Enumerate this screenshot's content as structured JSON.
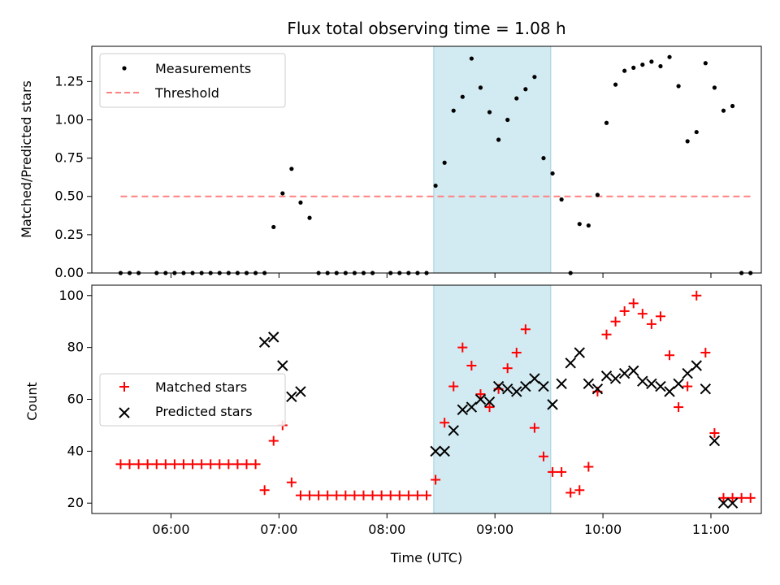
{
  "chart_data": [
    {
      "type": "scatter",
      "title": "Flux total observing time = 1.08 h",
      "ylabel": "Matched/Predicted stars",
      "xlabel": "",
      "xlim": [
        "05:16",
        "11:28"
      ],
      "ylim": [
        0,
        1.48
      ],
      "yticks": [
        0.0,
        0.25,
        0.5,
        0.75,
        1.0,
        1.25
      ],
      "ytick_labels": [
        "0.00",
        "0.25",
        "0.50",
        "0.75",
        "1.00",
        "1.25"
      ],
      "legend_position": "top-left",
      "shaded_region": [
        "08:26",
        "09:31"
      ],
      "shaded_color": "#add8e6",
      "series": [
        {
          "name": "Measurements",
          "marker": "dot",
          "color": "#000000",
          "x": [
            "05:32",
            "05:37",
            "05:42",
            "05:52",
            "05:57",
            "06:02",
            "06:07",
            "06:12",
            "06:17",
            "06:22",
            "06:27",
            "06:32",
            "06:37",
            "06:42",
            "06:47",
            "06:52",
            "06:57",
            "07:02",
            "07:07",
            "07:12",
            "07:17",
            "07:22",
            "07:27",
            "07:32",
            "07:37",
            "07:42",
            "07:47",
            "07:52",
            "08:02",
            "08:07",
            "08:12",
            "08:17",
            "08:22",
            "08:27",
            "08:32",
            "08:37",
            "08:42",
            "08:47",
            "08:52",
            "08:57",
            "09:02",
            "09:07",
            "09:12",
            "09:17",
            "09:22",
            "09:27",
            "09:32",
            "09:37",
            "09:42",
            "09:47",
            "09:52",
            "09:57",
            "10:02",
            "10:07",
            "10:12",
            "10:17",
            "10:22",
            "10:27",
            "10:32",
            "10:37",
            "10:42",
            "10:47",
            "10:52",
            "10:57",
            "11:02",
            "11:07",
            "11:12",
            "11:17",
            "11:22"
          ],
          "y": [
            0,
            0,
            0,
            0,
            0,
            0,
            0,
            0,
            0,
            0,
            0,
            0,
            0,
            0,
            0,
            0,
            0.3,
            0.52,
            0.68,
            0.46,
            0.36,
            0,
            0,
            0,
            0,
            0,
            0,
            0,
            0,
            0,
            0,
            0,
            0,
            0.57,
            0.72,
            1.06,
            1.15,
            1.4,
            1.21,
            1.05,
            0.87,
            1.0,
            1.14,
            1.2,
            1.28,
            0.75,
            0.65,
            0.48,
            0,
            0.32,
            0.31,
            0.51,
            0.98,
            1.23,
            1.32,
            1.34,
            1.36,
            1.38,
            1.35,
            1.41,
            1.22,
            0.86,
            0.92,
            1.37,
            1.21,
            1.06,
            1.09,
            0,
            0
          ]
        },
        {
          "name": "Threshold",
          "marker": "dashed-line",
          "color": "#ff8080",
          "x": [
            "05:32",
            "11:22"
          ],
          "y": [
            0.5,
            0.5
          ]
        }
      ]
    },
    {
      "type": "scatter",
      "title": "",
      "ylabel": "Count",
      "xlabel": "Time (UTC)",
      "xlim": [
        "05:16",
        "11:28"
      ],
      "ylim": [
        16,
        104
      ],
      "yticks": [
        20,
        40,
        60,
        80,
        100
      ],
      "ytick_labels": [
        "20",
        "40",
        "60",
        "80",
        "100"
      ],
      "xticks": [
        "06:00",
        "07:00",
        "08:00",
        "09:00",
        "10:00",
        "11:00"
      ],
      "xtick_labels": [
        "06:00",
        "07:00",
        "08:00",
        "09:00",
        "10:00",
        "11:00"
      ],
      "legend_position": "center-left",
      "shaded_region": [
        "08:26",
        "09:31"
      ],
      "shaded_color": "#add8e6",
      "series": [
        {
          "name": "Matched stars",
          "marker": "plus",
          "color": "#ff0000",
          "x": [
            "05:32",
            "05:37",
            "05:42",
            "05:47",
            "05:52",
            "05:57",
            "06:02",
            "06:07",
            "06:12",
            "06:17",
            "06:22",
            "06:27",
            "06:32",
            "06:37",
            "06:42",
            "06:47",
            "06:52",
            "06:57",
            "07:02",
            "07:07",
            "07:12",
            "07:17",
            "07:22",
            "07:27",
            "07:32",
            "07:37",
            "07:42",
            "07:47",
            "07:52",
            "07:57",
            "08:02",
            "08:07",
            "08:12",
            "08:17",
            "08:22",
            "08:27",
            "08:32",
            "08:37",
            "08:42",
            "08:47",
            "08:52",
            "08:57",
            "09:02",
            "09:07",
            "09:12",
            "09:17",
            "09:22",
            "09:27",
            "09:32",
            "09:37",
            "09:42",
            "09:47",
            "09:52",
            "09:57",
            "10:02",
            "10:07",
            "10:12",
            "10:17",
            "10:22",
            "10:27",
            "10:32",
            "10:37",
            "10:42",
            "10:47",
            "10:52",
            "10:57",
            "11:02",
            "11:07",
            "11:12",
            "11:17",
            "11:22"
          ],
          "y": [
            35,
            35,
            35,
            35,
            35,
            35,
            35,
            35,
            35,
            35,
            35,
            35,
            35,
            35,
            35,
            35,
            25,
            44,
            50,
            28,
            23,
            23,
            23,
            23,
            23,
            23,
            23,
            23,
            23,
            23,
            23,
            23,
            23,
            23,
            23,
            29,
            51,
            65,
            80,
            73,
            62,
            57,
            64,
            72,
            78,
            87,
            49,
            38,
            32,
            32,
            24,
            25,
            34,
            63,
            85,
            90,
            94,
            97,
            93,
            89,
            92,
            77,
            57,
            65,
            100,
            78,
            47,
            22,
            22,
            22,
            22
          ]
        },
        {
          "name": "Predicted stars",
          "marker": "x",
          "color": "#000000",
          "x": [
            "06:52",
            "06:57",
            "07:02",
            "07:07",
            "07:12",
            "08:27",
            "08:32",
            "08:37",
            "08:42",
            "08:47",
            "08:52",
            "08:57",
            "09:02",
            "09:07",
            "09:12",
            "09:17",
            "09:22",
            "09:27",
            "09:32",
            "09:37",
            "09:42",
            "09:47",
            "09:52",
            "09:57",
            "10:02",
            "10:07",
            "10:12",
            "10:17",
            "10:22",
            "10:27",
            "10:32",
            "10:37",
            "10:42",
            "10:47",
            "10:52",
            "10:57",
            "11:02",
            "11:07",
            "11:12"
          ],
          "y": [
            82,
            84,
            73,
            61,
            63,
            40,
            40,
            48,
            56,
            57,
            60,
            59,
            65,
            64,
            63,
            65,
            68,
            65,
            58,
            66,
            74,
            78,
            66,
            64,
            69,
            68,
            70,
            71,
            67,
            66,
            65,
            63,
            66,
            70,
            73,
            64,
            44,
            20,
            20
          ]
        }
      ]
    }
  ]
}
